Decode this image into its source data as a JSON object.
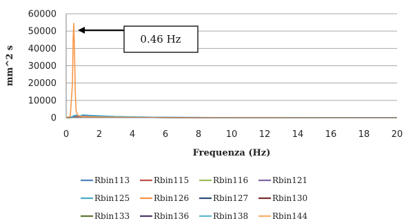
{
  "chart_data": {
    "type": "line",
    "title": "",
    "xlabel": "Frequenza (Hz)",
    "ylabel": "mm^2 s",
    "xlim": [
      0,
      20
    ],
    "ylim": [
      0,
      60000
    ],
    "x_ticks": [
      0,
      2,
      4,
      6,
      8,
      10,
      12,
      14,
      16,
      18,
      20
    ],
    "y_ticks": [
      0,
      10000,
      20000,
      30000,
      40000,
      50000,
      60000
    ],
    "grid": "horizontal",
    "legend_placement": "bottom",
    "annotation": {
      "text": "0.46 Hz",
      "x": 0.46,
      "y": 50500
    },
    "series": [
      {
        "name": "Rbin113",
        "color": "#4f81bd",
        "x": [
          0,
          0.3,
          0.46,
          0.6,
          0.8,
          1,
          1.5,
          2,
          2.5,
          3,
          4,
          5,
          6,
          8,
          10,
          14,
          20
        ],
        "y": [
          0,
          200,
          900,
          1200,
          800,
          1500,
          1100,
          900,
          700,
          600,
          400,
          300,
          150,
          50,
          20,
          10,
          0
        ]
      },
      {
        "name": "Rbin115",
        "color": "#c0504d",
        "x": [
          0,
          0.3,
          0.46,
          0.6,
          0.8,
          1,
          1.5,
          2,
          3,
          4,
          6,
          10,
          20
        ],
        "y": [
          0,
          150,
          700,
          900,
          600,
          1000,
          800,
          650,
          450,
          300,
          120,
          20,
          0
        ]
      },
      {
        "name": "Rbin116",
        "color": "#9bbb59",
        "x": [
          0,
          0.3,
          0.46,
          0.6,
          0.8,
          1,
          1.5,
          2,
          3,
          4,
          6,
          10,
          20
        ],
        "y": [
          0,
          120,
          600,
          800,
          500,
          900,
          700,
          550,
          400,
          250,
          100,
          20,
          0
        ]
      },
      {
        "name": "Rbin121",
        "color": "#8064a2",
        "x": [
          0,
          0.3,
          0.46,
          0.6,
          0.8,
          1,
          1.5,
          2,
          3,
          4,
          6,
          10,
          20
        ],
        "y": [
          0,
          100,
          500,
          700,
          450,
          800,
          650,
          500,
          350,
          220,
          90,
          15,
          0
        ]
      },
      {
        "name": "Rbin125",
        "color": "#4bacc6",
        "x": [
          0,
          0.3,
          0.46,
          0.6,
          0.8,
          1,
          1.5,
          2,
          2.5,
          3,
          4,
          5,
          6,
          10,
          20
        ],
        "y": [
          0,
          300,
          1200,
          1500,
          1000,
          1600,
          1300,
          1100,
          900,
          700,
          500,
          350,
          200,
          30,
          0
        ]
      },
      {
        "name": "Rbin126",
        "color": "#f79646",
        "x": [
          0,
          0.25,
          0.38,
          0.42,
          0.46,
          0.5,
          0.55,
          0.6,
          0.7,
          0.85,
          1,
          1.5,
          2,
          3,
          4,
          6,
          10,
          20
        ],
        "y": [
          0,
          800,
          20000,
          45000,
          54500,
          40000,
          15000,
          4000,
          1500,
          800,
          600,
          500,
          400,
          300,
          200,
          80,
          10,
          0
        ]
      },
      {
        "name": "Rbin127",
        "color": "#2c4d75",
        "x": [
          0,
          0.3,
          0.46,
          0.6,
          0.8,
          1,
          1.5,
          2,
          3,
          4,
          6,
          10,
          20
        ],
        "y": [
          0,
          130,
          650,
          850,
          550,
          950,
          750,
          600,
          420,
          280,
          110,
          20,
          0
        ]
      },
      {
        "name": "Rbin130",
        "color": "#772c2a",
        "x": [
          0,
          0.3,
          0.46,
          0.6,
          0.8,
          1,
          1.5,
          2,
          3,
          4,
          6,
          10,
          20
        ],
        "y": [
          0,
          110,
          550,
          750,
          480,
          850,
          680,
          520,
          370,
          240,
          95,
          15,
          0
        ]
      },
      {
        "name": "Rbin133",
        "color": "#5f7530",
        "x": [
          0,
          0.3,
          0.46,
          0.6,
          0.8,
          1,
          1.5,
          2,
          3,
          4,
          6,
          10,
          20
        ],
        "y": [
          0,
          90,
          450,
          650,
          400,
          750,
          600,
          480,
          330,
          210,
          80,
          12,
          0
        ]
      },
      {
        "name": "Rbin136",
        "color": "#4d3b62",
        "x": [
          0,
          0.3,
          0.46,
          0.6,
          0.8,
          1,
          1.5,
          2,
          3,
          4,
          6,
          10,
          20
        ],
        "y": [
          0,
          80,
          400,
          600,
          380,
          700,
          560,
          450,
          310,
          200,
          75,
          10,
          0
        ]
      },
      {
        "name": "Rbin138",
        "color": "#5fb6d3",
        "x": [
          0,
          0.3,
          0.46,
          0.6,
          0.8,
          1,
          1.5,
          2,
          2.5,
          3,
          4,
          5,
          6,
          10,
          20
        ],
        "y": [
          0,
          250,
          1000,
          1300,
          900,
          1400,
          1200,
          1000,
          850,
          650,
          450,
          300,
          180,
          25,
          0
        ]
      },
      {
        "name": "Rbin144",
        "color": "#f9b06a",
        "x": [
          0,
          0.3,
          0.46,
          0.6,
          0.8,
          1,
          1.5,
          2,
          3,
          4,
          6,
          10,
          20
        ],
        "y": [
          0,
          140,
          680,
          880,
          580,
          980,
          780,
          620,
          440,
          290,
          115,
          18,
          0
        ]
      }
    ]
  }
}
